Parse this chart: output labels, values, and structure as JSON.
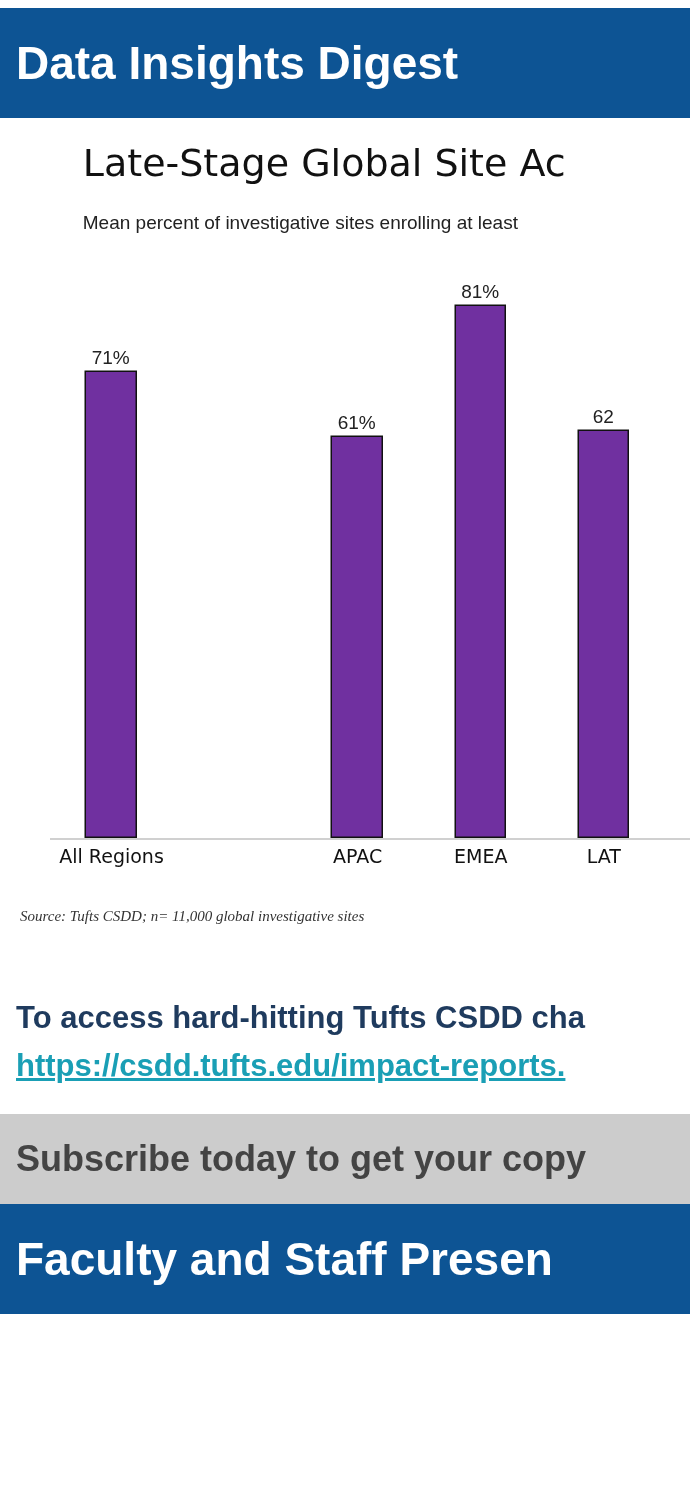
{
  "chart_data": {
    "type": "bar",
    "title": "Late-Stage Global Site Ac",
    "subtitle": "Mean percent of investigative sites enrolling at least",
    "categories": [
      "All Regions",
      null,
      "APAC",
      "EMEA",
      "LAT"
    ],
    "values": [
      71,
      null,
      61,
      81,
      62
    ],
    "value_labels": [
      "71%",
      null,
      "61%",
      "81%",
      "62"
    ],
    "color": "#7030a0",
    "tick_labels": "x",
    "grid": false,
    "legend": false,
    "annotations": [
      "Data Insights Digest",
      "Source:  Tufts CSDD; n= 11,000 global investigative sites",
      "To access hard-hitting Tufts CSDD cha",
      "https://csdd.tufts.edu/impact-reports.",
      "Subscribe today to get your copy",
      "Faculty and Staff Presen"
    ]
  }
}
